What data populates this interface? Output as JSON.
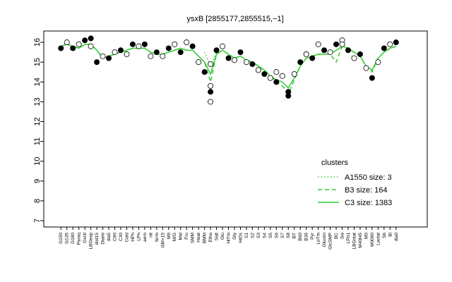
{
  "chart_data": {
    "type": "line",
    "title": "ysxB [2855177,2855515,−1]",
    "categories": [
      "G150",
      "G135",
      "G180",
      "Paraq",
      "Oxctl",
      "LBGexp",
      "dist15",
      "Diami",
      "dia5",
      "C90",
      "C30",
      "Cold",
      "HPh",
      "LPh",
      "aero",
      "nit",
      "ferm",
      "GM+15",
      "M9",
      "M/G",
      "Mal",
      "Fru",
      "SMM",
      "Heat",
      "BMM",
      "Etha",
      "Salt",
      "Glu",
      "HiTm",
      "Gly",
      "HiOs",
      "S1",
      "S2",
      "S3",
      "S4",
      "S5",
      "S6",
      "S7",
      "S8",
      "BT",
      "B60",
      "B36",
      "Pyr",
      "LoTm",
      "Glucon",
      "GlcSMP",
      "BC",
      "Sw",
      "LPh1",
      "LBGstat",
      "M40t45",
      "M0",
      "M0090",
      "Lactat",
      "Sb",
      "Bl",
      "dia0"
    ],
    "series": [
      {
        "name": "A1550 size: 3",
        "color": "#33cc33",
        "dash": "dotted",
        "values": [
          null,
          null,
          null,
          null,
          null,
          null,
          null,
          null,
          null,
          null,
          null,
          null,
          null,
          null,
          null,
          null,
          null,
          null,
          null,
          null,
          null,
          null,
          null,
          null,
          15.5,
          14.8,
          15.5,
          null,
          null,
          null,
          null,
          null,
          null,
          null,
          null,
          null,
          null,
          null,
          null,
          null,
          null,
          null,
          null,
          null,
          null,
          null,
          null,
          null,
          null,
          null,
          null,
          null,
          null,
          null,
          null,
          null,
          null
        ]
      },
      {
        "name": "B3 size: 164",
        "color": "#33cc33",
        "dash": "dashed",
        "values": [
          15.8,
          15.9,
          15.8,
          15.7,
          15.9,
          15.9,
          15.6,
          15.2,
          15.3,
          15.4,
          15.5,
          15.6,
          15.7,
          15.7,
          15.7,
          15.5,
          15.4,
          15.4,
          15.5,
          15.6,
          15.7,
          15.6,
          15.6,
          15.3,
          15.0,
          14.0,
          15.4,
          15.6,
          15.4,
          15.2,
          15.3,
          15.1,
          15.0,
          14.8,
          14.6,
          14.3,
          14.0,
          13.8,
          13.4,
          14.1,
          14.8,
          15.2,
          15.3,
          15.4,
          15.4,
          15.4,
          15.0,
          15.8,
          15.7,
          15.5,
          15.3,
          14.8,
          14.5,
          15.2,
          15.5,
          15.7,
          15.8
        ]
      },
      {
        "name": "C3 size: 1383",
        "color": "#33cc33",
        "dash": "solid",
        "values": [
          15.8,
          15.9,
          15.8,
          15.7,
          15.9,
          15.9,
          15.6,
          15.2,
          15.3,
          15.4,
          15.5,
          15.6,
          15.7,
          15.7,
          15.7,
          15.5,
          15.4,
          15.4,
          15.5,
          15.6,
          15.7,
          15.6,
          15.6,
          15.3,
          15.0,
          14.4,
          15.4,
          15.6,
          15.4,
          15.2,
          15.3,
          15.1,
          15.0,
          14.8,
          14.6,
          14.3,
          14.1,
          14.0,
          13.7,
          14.2,
          14.8,
          15.2,
          15.3,
          15.4,
          15.4,
          15.4,
          15.6,
          15.8,
          15.7,
          15.5,
          15.3,
          14.8,
          14.6,
          15.2,
          15.5,
          15.7,
          15.8
        ]
      }
    ],
    "points": {
      "x": [
        0,
        1,
        2,
        3,
        4,
        5,
        6,
        7,
        8,
        9,
        10,
        11,
        12,
        13,
        14,
        15,
        16,
        17,
        18,
        19,
        20,
        21,
        22,
        23,
        24,
        25,
        26,
        27,
        28,
        29,
        30,
        31,
        32,
        33,
        34,
        35,
        36,
        37,
        38,
        39,
        40,
        41,
        42,
        43,
        44,
        45,
        46,
        47,
        48,
        49,
        50,
        51,
        52,
        53,
        54,
        55,
        56,
        25,
        25,
        25,
        38,
        36,
        5,
        47
      ],
      "values": [
        15.7,
        16.0,
        15.7,
        15.9,
        16.1,
        15.8,
        15.0,
        15.3,
        15.2,
        15.5,
        15.6,
        15.4,
        15.9,
        15.8,
        15.9,
        15.3,
        15.5,
        15.3,
        15.7,
        15.9,
        15.5,
        16.0,
        15.8,
        15.0,
        14.5,
        13.8,
        15.6,
        15.8,
        15.2,
        15.1,
        15.5,
        15.0,
        14.9,
        14.6,
        14.4,
        14.2,
        14.0,
        14.3,
        13.5,
        14.4,
        15.0,
        15.4,
        15.2,
        15.9,
        15.6,
        15.5,
        15.9,
        16.1,
        15.6,
        15.2,
        15.4,
        14.7,
        14.2,
        15.0,
        15.7,
        15.9,
        16.0,
        13.0,
        13.5,
        14.9,
        13.3,
        14.5,
        16.2,
        15.9
      ]
    },
    "ylim": [
      6.68,
      16.57
    ],
    "yticks": [
      7,
      8,
      9,
      10,
      11,
      12,
      13,
      14,
      15,
      16
    ],
    "legend_title": "clusters",
    "legend": "bottomright"
  }
}
